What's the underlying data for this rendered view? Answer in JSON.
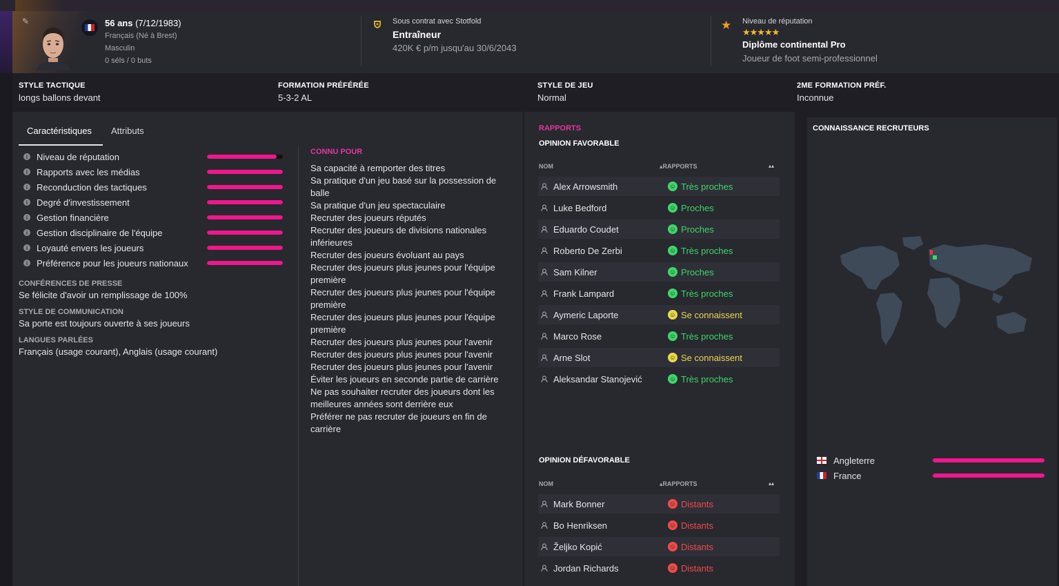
{
  "colors": {
    "accent": "#f0168c",
    "section_title": "#e0399d",
    "relation_green": "#3cd66a",
    "relation_yellow": "#e8d84a",
    "relation_red": "#ef4a4a",
    "star": "#f5b82e"
  },
  "profile": {
    "age_strong": "56 ans",
    "age_rest": " (7/12/1983)",
    "nationality": "Français (Né à Brest)",
    "gender": "Masculin",
    "stats": "0 séls / 0 buts"
  },
  "contract": {
    "label": "Sous contrat avec Stotfold",
    "role": "Entraîneur",
    "salary": "420K € p/m jusqu'au 30/6/2043"
  },
  "reputation": {
    "label": "Niveau de réputation",
    "stars": "★★★★★",
    "star_rating": 4.5,
    "diploma": "Diplôme continental Pro",
    "past": "Joueur de foot semi-professionnel"
  },
  "tactics": [
    {
      "label": "STYLE TACTIQUE",
      "value": "longs ballons devant"
    },
    {
      "label": "FORMATION PRÉFÉRÉE",
      "value": "5-3-2 AL"
    },
    {
      "label": "STYLE DE JEU",
      "value": "Normal"
    },
    {
      "label": "2ME FORMATION PRÉF.",
      "value": "Inconnue"
    }
  ],
  "tabs": [
    "Caractéristiques",
    "Attributs"
  ],
  "attributes": [
    {
      "label": "Niveau de réputation",
      "level": 0.92
    },
    {
      "label": "Rapports avec les médias",
      "level": 1.0
    },
    {
      "label": "Reconduction des tactiques",
      "level": 1.0
    },
    {
      "label": "Degré d'investissement",
      "level": 1.0
    },
    {
      "label": "Gestion financière",
      "level": 1.0
    },
    {
      "label": "Gestion disciplinaire de l'équipe",
      "level": 1.0
    },
    {
      "label": "Loyauté envers les joueurs",
      "level": 1.0
    },
    {
      "label": "Préférence pour les joueurs nationaux",
      "level": 1.0
    }
  ],
  "sections": [
    {
      "label": "CONFÉRENCES DE PRESSE",
      "value": "Se félicite d'avoir un remplissage de 100%"
    },
    {
      "label": "STYLE DE COMMUNICATION",
      "value": "Sa porte est toujours ouverte à ses joueurs"
    },
    {
      "label": "LANGUES PARLÉES",
      "value": "Français (usage courant), Anglais (usage courant)"
    }
  ],
  "known_for": {
    "title": "CONNU POUR",
    "items": [
      "Sa capacité à remporter des titres",
      "Sa pratique d'un jeu basé sur la possession de balle",
      "Sa pratique d'un jeu spectaculaire",
      "Recruter des joueurs réputés",
      "Recruter des joueurs de divisions nationales inférieures",
      "Recruter des joueurs évoluant au pays",
      "Recruter des joueurs plus jeunes pour l'équipe première",
      "Recruter des joueurs plus jeunes pour l'équipe première",
      "Recruter des joueurs plus jeunes pour l'équipe première",
      "Recruter des joueurs plus jeunes pour l'avenir",
      "Recruter des joueurs plus jeunes pour l'avenir",
      "Recruter des joueurs plus jeunes pour l'avenir",
      "Éviter les joueurs en seconde partie de carrière",
      "Ne pas souhaiter recruter des joueurs dont les meilleures années sont derrière eux",
      "Préférer ne pas recruter de joueurs en fin de carrière"
    ]
  },
  "relations": {
    "title": "RAPPORTS",
    "favorable_title": "OPINION FAVORABLE",
    "unfavorable_title": "OPINION DÉFAVORABLE",
    "col_name": "NOM",
    "col_rel": "RAPPORTS",
    "favorable": [
      {
        "name": "Alex Arrowsmith",
        "rel": "Très proches",
        "tone": "green"
      },
      {
        "name": "Luke Bedford",
        "rel": "Proches",
        "tone": "green"
      },
      {
        "name": "Eduardo Coudet",
        "rel": "Proches",
        "tone": "green"
      },
      {
        "name": "Roberto De Zerbi",
        "rel": "Très proches",
        "tone": "green"
      },
      {
        "name": "Sam Kilner",
        "rel": "Proches",
        "tone": "green"
      },
      {
        "name": "Frank Lampard",
        "rel": "Très proches",
        "tone": "green"
      },
      {
        "name": "Aymeric Laporte",
        "rel": "Se connaissent",
        "tone": "yellow"
      },
      {
        "name": "Marco Rose",
        "rel": "Très proches",
        "tone": "green"
      },
      {
        "name": "Arne Slot",
        "rel": "Se connaissent",
        "tone": "yellow"
      },
      {
        "name": "Aleksandar Stanojević",
        "rel": "Très proches",
        "tone": "green"
      }
    ],
    "unfavorable": [
      {
        "name": "Mark Bonner",
        "rel": "Distants",
        "tone": "red"
      },
      {
        "name": "Bo Henriksen",
        "rel": "Distants",
        "tone": "red"
      },
      {
        "name": "Željko Kopić",
        "rel": "Distants",
        "tone": "red"
      },
      {
        "name": "Jordan Richards",
        "rel": "Distants",
        "tone": "red"
      }
    ]
  },
  "scouting": {
    "title": "CONNAISSANCE RECRUTEURS",
    "countries": [
      {
        "name": "Angleterre",
        "flag": "flag-england",
        "level": 1.0
      },
      {
        "name": "France",
        "flag": "flag-france",
        "level": 1.0
      }
    ]
  }
}
